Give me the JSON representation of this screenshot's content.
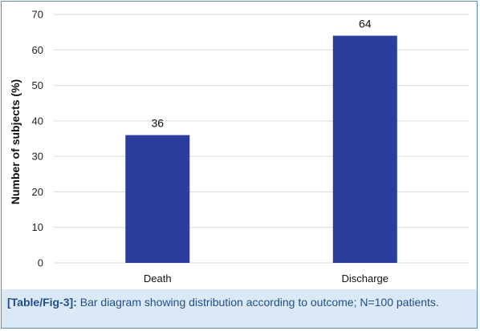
{
  "chart_data": {
    "type": "bar",
    "categories": [
      "Death",
      "Discharge"
    ],
    "values": [
      36,
      64
    ],
    "data_labels": [
      "36",
      "64"
    ],
    "title": "",
    "xlabel": "",
    "ylabel": "Number of subjects (%)",
    "ylim": [
      0,
      70
    ],
    "yticks": [
      0,
      10,
      20,
      30,
      40,
      50,
      60,
      70
    ],
    "grid": true,
    "legend": "none",
    "bar_color": "#2b3e9e",
    "grid_color": "#d9d9d9"
  },
  "caption": {
    "figure_id": "[Table/Fig-3]:",
    "text": " Bar diagram showing distribution according to outcome; N=100 patients."
  },
  "colors": {
    "border": "#5b87c5",
    "caption_bg": "#dbe8f5",
    "caption_text": "#1f4e8a"
  }
}
